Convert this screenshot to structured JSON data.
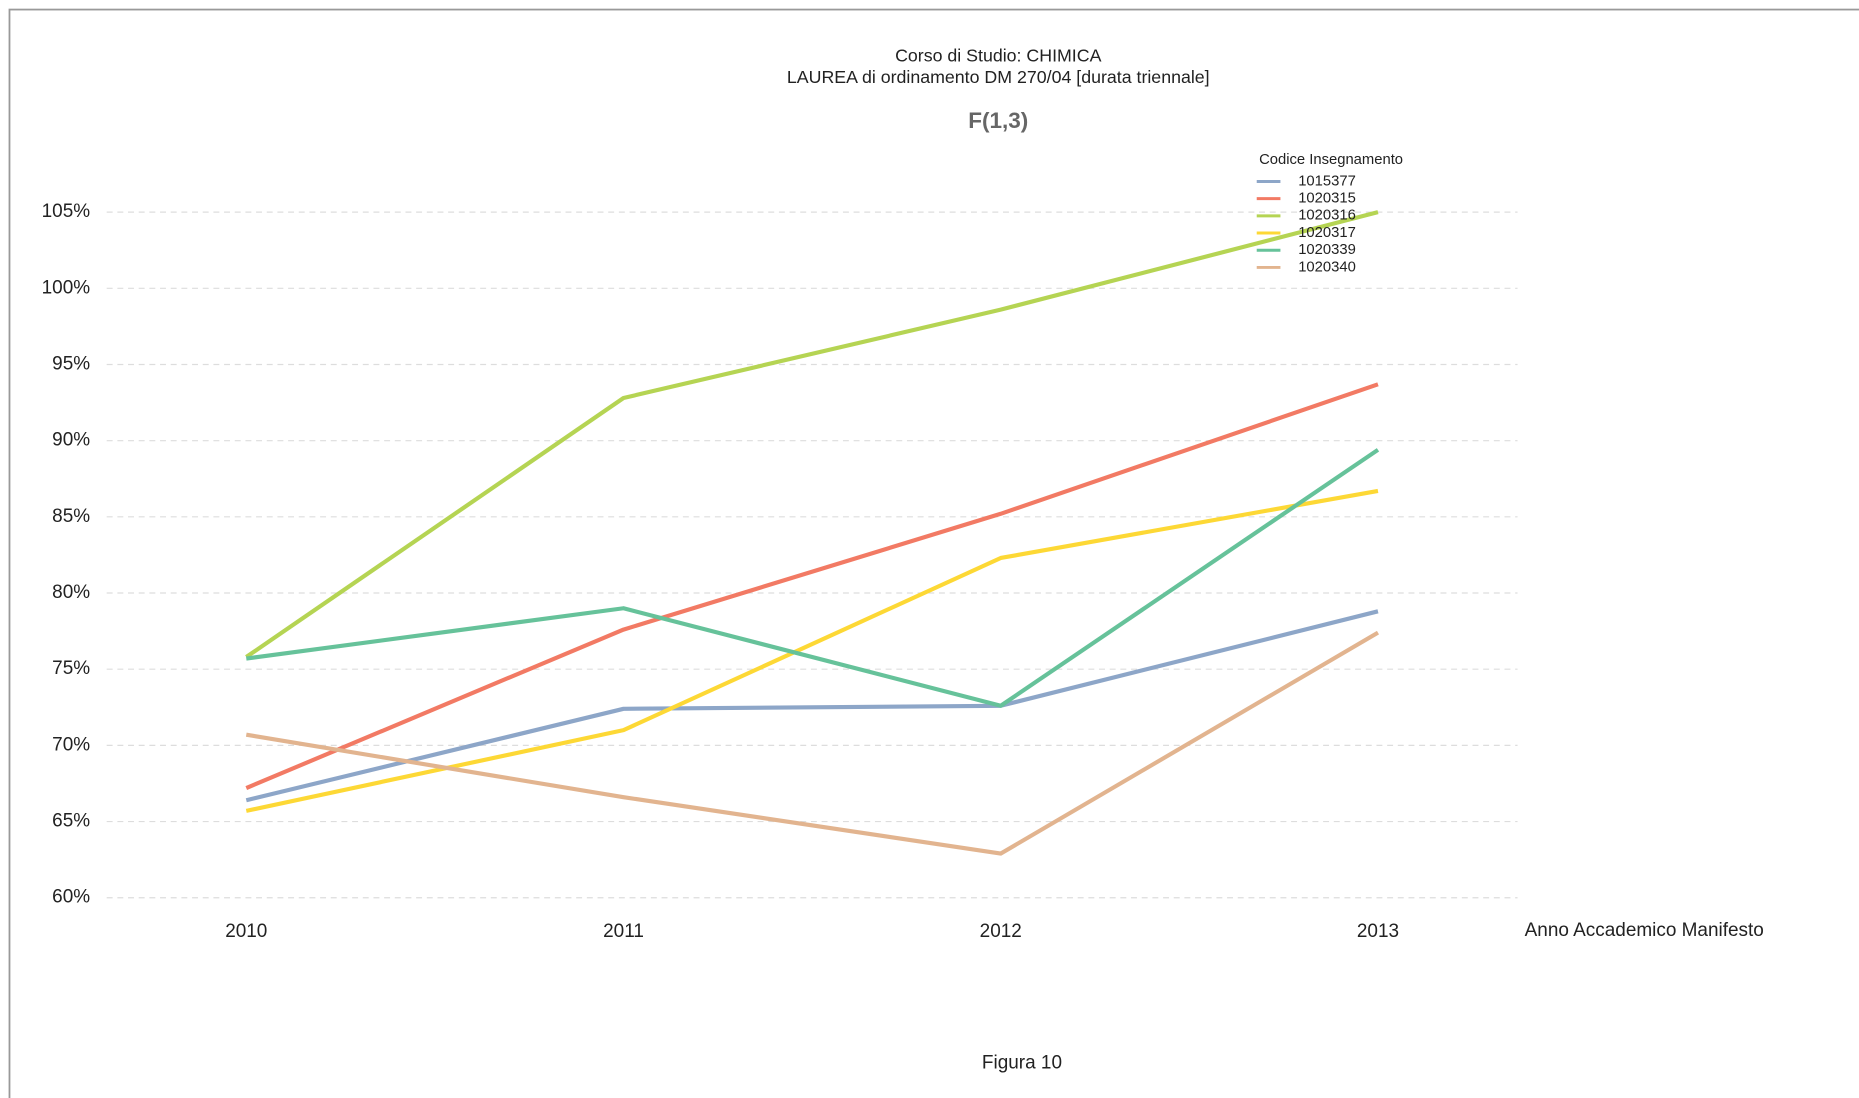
{
  "chart_data": {
    "type": "line",
    "title_lines": [
      "Corso di Studio: CHIMICA",
      "LAUREA di ordinamento DM 270/04 [durata triennale]"
    ],
    "subtitle": "F(1,3)",
    "xlabel": "Anno Accademico Manifesto",
    "legend_title": "Codice Insegnamento",
    "legend": "top-right",
    "caption": "Figura 10",
    "grid": true,
    "x": [
      2010,
      2011,
      2012,
      2013
    ],
    "xlim": [
      2009.63,
      2013.37
    ],
    "xticks": [
      2010,
      2011,
      2012,
      2013
    ],
    "ylim": [
      59,
      106
    ],
    "yticks": [
      {
        "value": 60,
        "label": "60%"
      },
      {
        "value": 65,
        "label": "65%"
      },
      {
        "value": 70,
        "label": "70%"
      },
      {
        "value": 75,
        "label": "75%"
      },
      {
        "value": 80,
        "label": "80%"
      },
      {
        "value": 85,
        "label": "85%"
      },
      {
        "value": 90,
        "label": "90%"
      },
      {
        "value": 95,
        "label": "95%"
      },
      {
        "value": 100,
        "label": "100%"
      },
      {
        "value": 105,
        "label": "105%"
      }
    ],
    "series": [
      {
        "name": "1015377",
        "color": "#8DA6C8",
        "values": [
          66.4,
          72.4,
          72.6,
          78.8
        ]
      },
      {
        "name": "1020315",
        "color": "#F27A64",
        "values": [
          67.2,
          77.6,
          85.2,
          93.7
        ]
      },
      {
        "name": "1020316",
        "color": "#B5D453",
        "values": [
          75.8,
          92.8,
          98.6,
          105
        ]
      },
      {
        "name": "1020317",
        "color": "#FDD835",
        "values": [
          65.7,
          71.0,
          82.3,
          86.7
        ]
      },
      {
        "name": "1020339",
        "color": "#66C29A",
        "values": [
          75.7,
          79.0,
          72.6,
          89.4
        ]
      },
      {
        "name": "1020340",
        "color": "#E2B48F",
        "values": [
          70.7,
          66.6,
          62.9,
          77.4
        ]
      }
    ]
  }
}
